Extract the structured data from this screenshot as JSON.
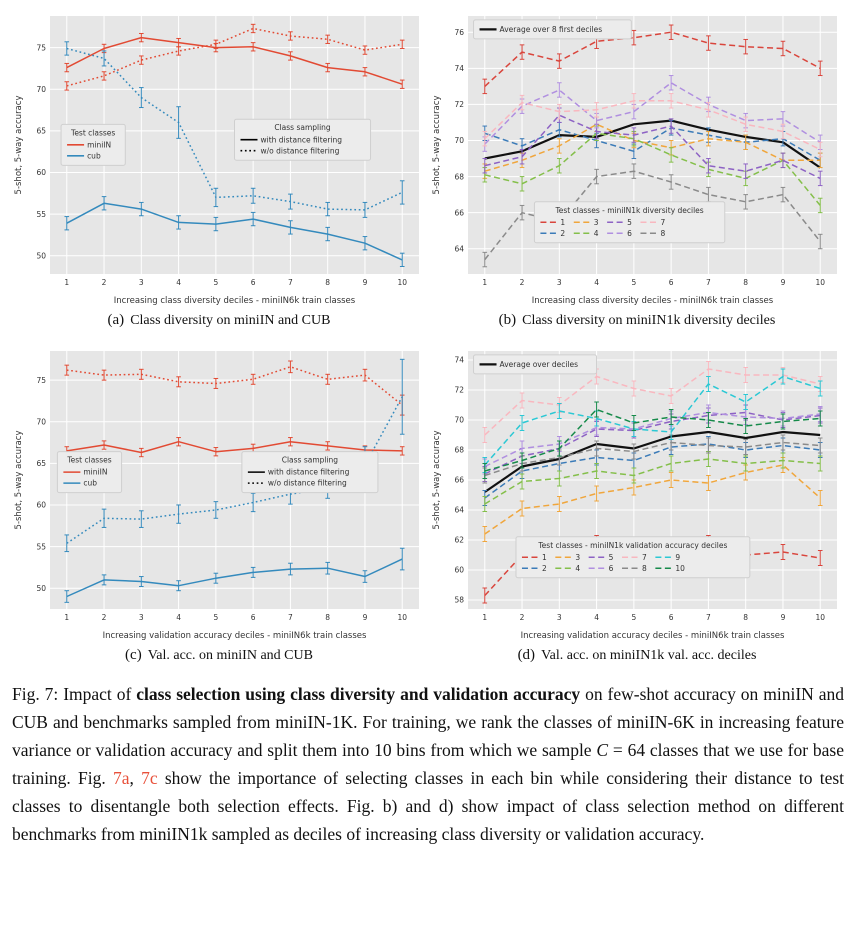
{
  "figure": {
    "subcaptions": {
      "a": {
        "tag": "(a)",
        "text": "Class diversity on miniIN and CUB"
      },
      "b": {
        "tag": "(b)",
        "text": "Class diversity on miniIN1k diversity deciles"
      },
      "c": {
        "tag": "(c)",
        "text": "Val. acc. on miniIN and CUB"
      },
      "d": {
        "tag": "(d)",
        "text": "Val. acc. on miniIN1k val. acc. deciles"
      }
    },
    "caption": {
      "link_color": "#e8503a",
      "parts": [
        {
          "text": "Fig. 7: Impact of ",
          "style": "normal"
        },
        {
          "text": "class selection using class diversity and validation accuracy",
          "style": "bold"
        },
        {
          "text": " on few-shot accuracy on miniIN and CUB and benchmarks sampled from miniIN-1K. For training, we rank the classes of miniIN-6K in increasing feature variance or validation accuracy and split them into 10 bins from which we sample ",
          "style": "normal"
        },
        {
          "text": "C",
          "style": "italic"
        },
        {
          "text": " = 64 classes that we use for base training. Fig. ",
          "style": "normal"
        },
        {
          "text": "7a",
          "style": "link"
        },
        {
          "text": ", ",
          "style": "normal"
        },
        {
          "text": "7c",
          "style": "link"
        },
        {
          "text": " show the importance of selecting classes in each bin while considering their distance to test classes to disentangle both selection effects. Fig. b) and d) show impact of class selection method on different benchmarks from miniIN1k sampled as deciles of increasing class diversity or validation accuracy.",
          "style": "normal"
        }
      ]
    }
  },
  "chart_data": [
    {
      "id": "a",
      "type": "line",
      "x": [
        1,
        2,
        3,
        4,
        5,
        6,
        7,
        8,
        9,
        10
      ],
      "xlabel": "Increasing class diversity deciles - miniIN6k train classes",
      "ylabel": "5-shot, 5-way accuracy",
      "ylim": [
        47.8,
        78.8
      ],
      "yticks": [
        50,
        55,
        60,
        65,
        70,
        75
      ],
      "grid": true,
      "series": [
        {
          "name": "miniIN - with distance filtering",
          "color": "#e24a33",
          "dash": "solid",
          "values": [
            72.6,
            74.9,
            76.2,
            75.6,
            75.0,
            75.1,
            74.0,
            72.6,
            72.1,
            70.6
          ],
          "err": 0.5
        },
        {
          "name": "miniIN - w/o distance filtering",
          "color": "#e24a33",
          "dash": "dotted",
          "values": [
            70.4,
            71.6,
            73.5,
            74.6,
            75.4,
            77.3,
            76.4,
            76.0,
            74.7,
            75.4
          ],
          "err": 0.5
        },
        {
          "name": "cub - with distance filtering",
          "color": "#348abd",
          "dash": "solid",
          "values": [
            53.9,
            56.3,
            55.6,
            54.0,
            53.8,
            54.4,
            53.4,
            52.6,
            51.5,
            49.5
          ],
          "err": 0.8
        },
        {
          "name": "cub - w/o distance filtering",
          "color": "#348abd",
          "dash": "dotted",
          "values": [
            74.9,
            73.7,
            69.0,
            66.0,
            57.0,
            57.2,
            56.5,
            55.6,
            55.5,
            57.6
          ],
          "err": [
            0.8,
            0.9,
            1.2,
            1.9,
            1.1,
            0.9,
            0.9,
            0.8,
            0.9,
            1.4
          ]
        }
      ],
      "legends": [
        {
          "title": "Test classes",
          "columns": 1,
          "x": 0.03,
          "y": 0.42,
          "entries": [
            {
              "label": "miniIN",
              "color": "#e24a33",
              "dash": "solid"
            },
            {
              "label": "cub",
              "color": "#348abd",
              "dash": "solid"
            }
          ]
        },
        {
          "title": "Class sampling",
          "columns": 1,
          "x": 0.5,
          "y": 0.4,
          "entries": [
            {
              "label": "with distance filtering",
              "color": "#000000",
              "dash": "solid"
            },
            {
              "label": "w/o distance filtering",
              "color": "#000000",
              "dash": "dotted"
            }
          ]
        }
      ]
    },
    {
      "id": "b",
      "type": "line",
      "x": [
        1,
        2,
        3,
        4,
        5,
        6,
        7,
        8,
        9,
        10
      ],
      "xlabel": "Increasing class diversity deciles - miniIN6k train classes",
      "ylabel": "5-shot, 5-way accuracy",
      "ylim": [
        62.6,
        76.9
      ],
      "yticks": [
        64,
        66,
        68,
        70,
        72,
        74,
        76
      ],
      "grid": true,
      "series": [
        {
          "name": "Average over 8 first deciles",
          "color": "#111111",
          "dash": "solid",
          "width": 2.2,
          "values": [
            69.0,
            69.4,
            70.3,
            70.2,
            70.9,
            71.1,
            70.6,
            70.2,
            69.9,
            68.5
          ]
        },
        {
          "name": "1",
          "color": "#d9453c",
          "dash": "dashed",
          "values": [
            73.0,
            74.9,
            74.4,
            75.5,
            75.7,
            76.0,
            75.4,
            75.2,
            75.1,
            74.0
          ],
          "err": 0.4
        },
        {
          "name": "2",
          "color": "#3b7bb8",
          "dash": "dashed",
          "values": [
            70.4,
            69.7,
            70.6,
            70.0,
            69.4,
            70.7,
            70.3,
            69.9,
            70.1,
            68.9
          ],
          "err": 0.4
        },
        {
          "name": "3",
          "color": "#f0a63c",
          "dash": "dashed",
          "values": [
            68.3,
            68.9,
            69.7,
            70.9,
            70.0,
            69.6,
            70.1,
            69.9,
            68.9,
            68.9
          ],
          "err": 0.4
        },
        {
          "name": "4",
          "color": "#84bf4a",
          "dash": "dashed",
          "values": [
            68.1,
            67.6,
            68.6,
            70.4,
            70.1,
            69.2,
            68.4,
            67.9,
            68.9,
            66.4
          ],
          "err": 0.4
        },
        {
          "name": "5",
          "color": "#8d62c4",
          "dash": "dashed",
          "values": [
            68.6,
            69.1,
            71.4,
            70.5,
            70.3,
            70.8,
            68.6,
            68.3,
            68.9,
            67.9
          ],
          "err": 0.4
        },
        {
          "name": "6",
          "color": "#b08fe0",
          "dash": "dashed",
          "values": [
            69.8,
            71.9,
            72.8,
            71.1,
            71.6,
            73.2,
            72.0,
            71.1,
            71.2,
            69.9
          ],
          "err": 0.4
        },
        {
          "name": "7",
          "color": "#f9b7bf",
          "dash": "dashed",
          "values": [
            70.1,
            72.1,
            71.6,
            71.7,
            72.2,
            72.2,
            71.7,
            70.9,
            70.5,
            69.5
          ],
          "err": 0.4
        },
        {
          "name": "8",
          "color": "#8a8a8a",
          "dash": "dashed",
          "values": [
            63.4,
            66.0,
            65.5,
            68.0,
            68.3,
            67.7,
            67.0,
            66.6,
            67.0,
            64.4
          ],
          "err": 0.4
        }
      ],
      "legends": [
        {
          "title": null,
          "columns": 1,
          "x": 0.015,
          "y": 0.015,
          "entries": [
            {
              "label": "Average over 8 first deciles",
              "color": "#111111",
              "dash": "solid",
              "width": 2.2
            }
          ]
        },
        {
          "title": "Test classes - miniIN1k diversity deciles",
          "columns": 4,
          "x": 0.18,
          "y": 0.72,
          "entries": [
            {
              "label": "1",
              "color": "#d9453c",
              "dash": "dashed"
            },
            {
              "label": "2",
              "color": "#3b7bb8",
              "dash": "dashed"
            },
            {
              "label": "3",
              "color": "#f0a63c",
              "dash": "dashed"
            },
            {
              "label": "4",
              "color": "#84bf4a",
              "dash": "dashed"
            },
            {
              "label": "5",
              "color": "#8d62c4",
              "dash": "dashed"
            },
            {
              "label": "6",
              "color": "#b08fe0",
              "dash": "dashed"
            },
            {
              "label": "7",
              "color": "#f9b7bf",
              "dash": "dashed"
            },
            {
              "label": "8",
              "color": "#8a8a8a",
              "dash": "dashed"
            }
          ]
        }
      ]
    },
    {
      "id": "c",
      "type": "line",
      "x": [
        1,
        2,
        3,
        4,
        5,
        6,
        7,
        8,
        9,
        10
      ],
      "xlabel": "Increasing validation accuracy deciles - miniIN6k train classes",
      "ylabel": "5-shot, 5-way accuracy",
      "ylim": [
        47.5,
        78.5
      ],
      "yticks": [
        50,
        55,
        60,
        65,
        70,
        75
      ],
      "grid": true,
      "series": [
        {
          "name": "miniIN - with distance filtering",
          "color": "#e24a33",
          "dash": "solid",
          "values": [
            66.5,
            67.2,
            66.3,
            67.6,
            66.4,
            66.8,
            67.6,
            67.1,
            66.6,
            66.5
          ],
          "err": 0.5
        },
        {
          "name": "miniIN - w/o distance filtering",
          "color": "#e24a33",
          "dash": "dotted",
          "values": [
            76.2,
            75.6,
            75.7,
            74.8,
            74.6,
            75.1,
            76.6,
            75.1,
            75.6,
            72.0
          ],
          "err": [
            0.6,
            0.6,
            0.6,
            0.6,
            0.6,
            0.6,
            0.7,
            0.6,
            0.7,
            1.2
          ]
        },
        {
          "name": "cub - with distance filtering",
          "color": "#348abd",
          "dash": "solid",
          "values": [
            49.0,
            51.0,
            50.8,
            50.3,
            51.2,
            51.9,
            52.3,
            52.4,
            51.4,
            53.5
          ],
          "err": [
            0.7,
            0.6,
            0.6,
            0.6,
            0.6,
            0.6,
            0.7,
            0.7,
            0.7,
            1.3
          ]
        },
        {
          "name": "cub - w/o distance filtering",
          "color": "#348abd",
          "dash": "dotted",
          "values": [
            55.4,
            58.4,
            58.3,
            58.9,
            59.4,
            60.3,
            61.3,
            62.0,
            64.8,
            73.0
          ],
          "err": [
            1.0,
            1.1,
            1.0,
            1.1,
            1.0,
            1.1,
            1.2,
            1.2,
            2.2,
            4.5
          ]
        }
      ],
      "legends": [
        {
          "title": "Test classes",
          "columns": 1,
          "x": 0.02,
          "y": 0.39,
          "entries": [
            {
              "label": "miniIN",
              "color": "#e24a33",
              "dash": "solid"
            },
            {
              "label": "cub",
              "color": "#348abd",
              "dash": "solid"
            }
          ]
        },
        {
          "title": "Class sampling",
          "columns": 1,
          "x": 0.52,
          "y": 0.39,
          "entries": [
            {
              "label": "with distance filtering",
              "color": "#000000",
              "dash": "solid"
            },
            {
              "label": "w/o distance filtering",
              "color": "#000000",
              "dash": "dotted"
            }
          ]
        }
      ]
    },
    {
      "id": "d",
      "type": "line",
      "x": [
        1,
        2,
        3,
        4,
        5,
        6,
        7,
        8,
        9,
        10
      ],
      "xlabel": "Increasing validation accuracy deciles - miniIN6k train classes",
      "ylabel": "5-shot, 5-way accuracy",
      "ylim": [
        57.4,
        74.6
      ],
      "yticks": [
        58,
        60,
        62,
        64,
        66,
        68,
        70,
        72,
        74
      ],
      "grid": true,
      "series": [
        {
          "name": "Average over deciles",
          "color": "#111111",
          "dash": "solid",
          "width": 2.2,
          "values": [
            65.2,
            66.9,
            67.4,
            68.4,
            68.1,
            68.9,
            69.2,
            68.8,
            69.2,
            69.0
          ]
        },
        {
          "name": "1",
          "color": "#d9453c",
          "dash": "dashed",
          "values": [
            58.3,
            61.0,
            61.1,
            61.8,
            61.0,
            61.0,
            61.8,
            61.0,
            61.2,
            60.8
          ],
          "err": 0.5
        },
        {
          "name": "2",
          "color": "#3b7bb8",
          "dash": "dashed",
          "values": [
            64.8,
            66.6,
            67.1,
            67.5,
            67.3,
            68.2,
            68.4,
            68.0,
            68.3,
            68.0
          ],
          "err": 0.5
        },
        {
          "name": "3",
          "color": "#f0a63c",
          "dash": "dashed",
          "values": [
            62.4,
            64.1,
            64.4,
            65.1,
            65.5,
            66.0,
            65.8,
            66.5,
            67.0,
            64.8
          ],
          "err": 0.5
        },
        {
          "name": "4",
          "color": "#84bf4a",
          "dash": "dashed",
          "values": [
            64.4,
            65.9,
            66.1,
            66.6,
            66.3,
            67.1,
            67.4,
            67.1,
            67.3,
            67.1
          ],
          "err": 0.5
        },
        {
          "name": "5",
          "color": "#8d62c4",
          "dash": "dashed",
          "values": [
            66.4,
            67.6,
            68.1,
            69.4,
            69.3,
            69.9,
            70.3,
            70.5,
            70.0,
            70.3
          ],
          "err": 0.5
        },
        {
          "name": "6",
          "color": "#b08fe0",
          "dash": "dashed",
          "values": [
            66.9,
            68.1,
            68.4,
            69.5,
            69.4,
            70.1,
            70.5,
            70.2,
            70.1,
            70.4
          ],
          "err": 0.5
        },
        {
          "name": "7",
          "color": "#f9b7bf",
          "dash": "dashed",
          "values": [
            69.0,
            71.3,
            71.0,
            72.9,
            72.1,
            71.6,
            73.4,
            73.0,
            73.0,
            72.4
          ],
          "err": 0.5
        },
        {
          "name": "8",
          "color": "#8a8a8a",
          "dash": "dashed",
          "values": [
            66.3,
            67.1,
            67.5,
            68.1,
            67.9,
            68.5,
            68.3,
            68.2,
            68.5,
            68.3
          ],
          "err": 0.5
        },
        {
          "name": "9",
          "color": "#2bc8d4",
          "dash": "dashed",
          "values": [
            67.0,
            69.8,
            70.6,
            70.1,
            69.4,
            69.2,
            72.4,
            71.2,
            72.9,
            72.1
          ],
          "err": 0.5
        },
        {
          "name": "10",
          "color": "#168a4a",
          "dash": "dashed",
          "values": [
            66.6,
            67.3,
            68.1,
            70.7,
            69.8,
            70.2,
            70.0,
            69.6,
            69.9,
            70.1
          ],
          "err": 0.5
        }
      ],
      "legends": [
        {
          "title": null,
          "columns": 1,
          "x": 0.015,
          "y": 0.015,
          "entries": [
            {
              "label": "Average over deciles",
              "color": "#111111",
              "dash": "solid",
              "width": 2.2
            }
          ]
        },
        {
          "title": "Test classes - miniIN1k validation accuracy deciles",
          "columns": 5,
          "x": 0.13,
          "y": 0.72,
          "entries": [
            {
              "label": "1",
              "color": "#d9453c",
              "dash": "dashed"
            },
            {
              "label": "2",
              "color": "#3b7bb8",
              "dash": "dashed"
            },
            {
              "label": "3",
              "color": "#f0a63c",
              "dash": "dashed"
            },
            {
              "label": "4",
              "color": "#84bf4a",
              "dash": "dashed"
            },
            {
              "label": "5",
              "color": "#8d62c4",
              "dash": "dashed"
            },
            {
              "label": "6",
              "color": "#b08fe0",
              "dash": "dashed"
            },
            {
              "label": "7",
              "color": "#f9b7bf",
              "dash": "dashed"
            },
            {
              "label": "8",
              "color": "#8a8a8a",
              "dash": "dashed"
            },
            {
              "label": "9",
              "color": "#2bc8d4",
              "dash": "dashed"
            },
            {
              "label": "10",
              "color": "#168a4a",
              "dash": "dashed"
            }
          ]
        }
      ]
    }
  ]
}
